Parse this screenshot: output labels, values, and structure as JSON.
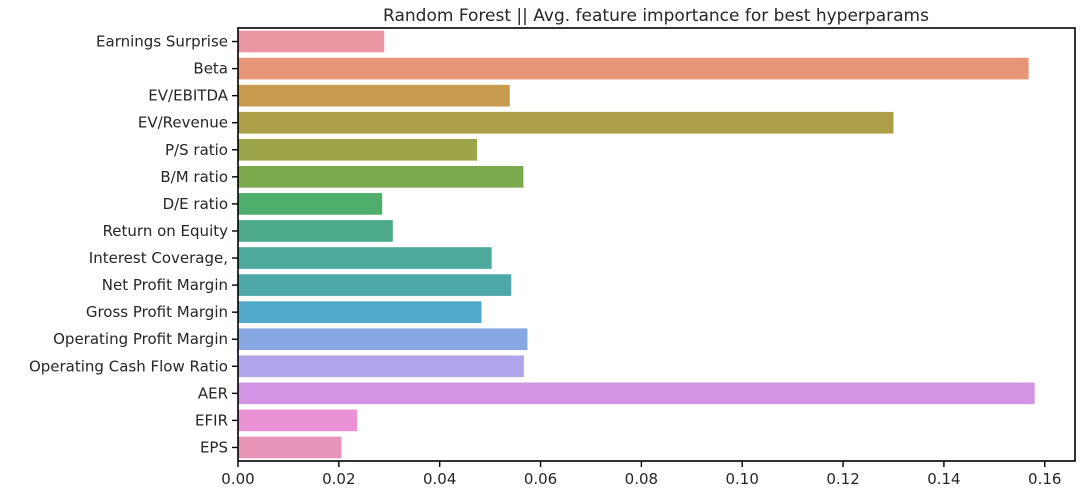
{
  "chart_data": {
    "type": "bar",
    "orientation": "horizontal",
    "title": "Random Forest || Avg. feature importance for best hyperparams",
    "xlabel": "",
    "ylabel": "",
    "categories": [
      "Earnings Surprise",
      "Beta",
      "EV/EBITDA",
      "EV/Revenue",
      "P/S ratio",
      "B/M ratio",
      "D/E ratio",
      "Return on Equity",
      "Interest Coverage,",
      "Net Profit Margin",
      "Gross Profit Margin",
      "Operating Profit Margin",
      "Operating Cash Flow Ratio",
      "AER",
      "EFIR",
      "EPS"
    ],
    "values": [
      0.029,
      0.1568,
      0.0539,
      0.13,
      0.0474,
      0.0566,
      0.0286,
      0.0307,
      0.0503,
      0.0542,
      0.0483,
      0.0574,
      0.0567,
      0.158,
      0.0236,
      0.0205
    ],
    "colors": [
      "#ea96a3",
      "#e69576",
      "#c89a4e",
      "#ad9e48",
      "#9ea449",
      "#79a94b",
      "#4daf6b",
      "#4caa8b",
      "#4ca99c",
      "#4ea7a9",
      "#51aacb",
      "#88a8e3",
      "#b1a4ea",
      "#d394e5",
      "#e991d4",
      "#e893b8"
    ],
    "xlim": [
      0.0,
      0.166
    ],
    "xticks": [
      0.0,
      0.02,
      0.04,
      0.06,
      0.08,
      0.1,
      0.12,
      0.14,
      0.16
    ],
    "xtick_labels": [
      "0.00",
      "0.02",
      "0.04",
      "0.06",
      "0.08",
      "0.10",
      "0.12",
      "0.14",
      "0.16"
    ],
    "grid": false,
    "legend": "none"
  }
}
